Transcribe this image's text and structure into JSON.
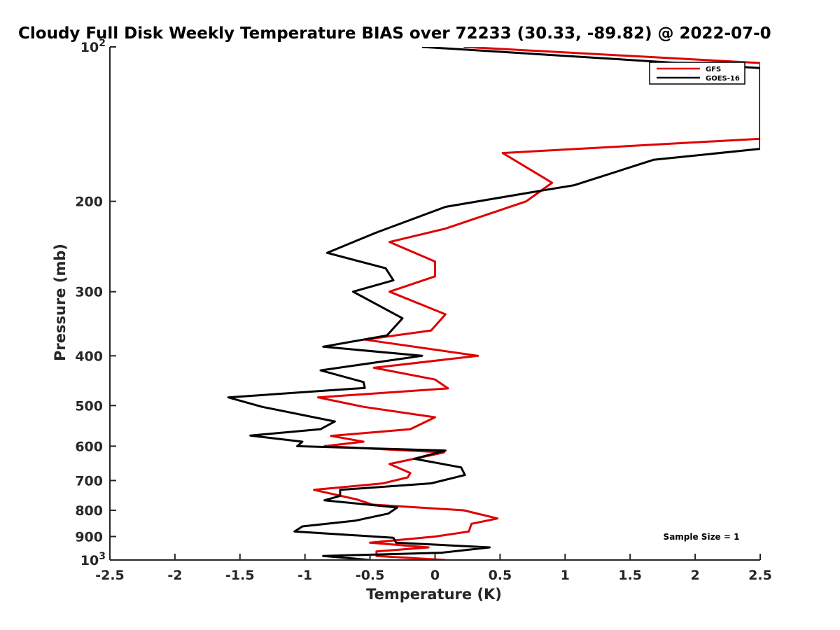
{
  "chart_data": {
    "type": "line",
    "title": "Cloudy Full Disk Weekly Temperature BIAS over 72233 (30.33, -89.82) @ 2022-07-0",
    "xlabel": "Temperature (K)",
    "ylabel": "Pressure (mb)",
    "xlim": [
      -2.5,
      2.5
    ],
    "ylim": [
      1000,
      100
    ],
    "yscale": "log",
    "y_reversed": true,
    "grid": false,
    "legend_position": "top-right",
    "annotation": "Sample Size = 1",
    "x_ticks": [
      "-2.5",
      "-2",
      "-1.5",
      "-1",
      "-0.5",
      "0",
      "0.5",
      "1",
      "1.5",
      "2",
      "2.5"
    ],
    "y_ticks": [
      {
        "value": 100,
        "label": "10",
        "sup": "2"
      },
      {
        "value": 200,
        "label": "200"
      },
      {
        "value": 300,
        "label": "300"
      },
      {
        "value": 400,
        "label": "400"
      },
      {
        "value": 500,
        "label": "500"
      },
      {
        "value": 600,
        "label": "600"
      },
      {
        "value": 700,
        "label": "700"
      },
      {
        "value": 800,
        "label": "800"
      },
      {
        "value": 900,
        "label": "900"
      },
      {
        "value": 1000,
        "label": "10",
        "sup": "3"
      }
    ],
    "series": [
      {
        "name": "GFS",
        "color": "#e00000",
        "points": [
          [
            0.22,
            100
          ],
          [
            2.5,
            107.5
          ],
          [
            2.5,
            151
          ],
          [
            0.52,
            161
          ],
          [
            0.9,
            184
          ],
          [
            0.7,
            200
          ],
          [
            0.08,
            226
          ],
          [
            -0.35,
            240
          ],
          [
            0.0,
            262
          ],
          [
            0.0,
            280
          ],
          [
            -0.35,
            300
          ],
          [
            0.08,
            332
          ],
          [
            -0.03,
            357
          ],
          [
            -0.54,
            372
          ],
          [
            0.33,
            400
          ],
          [
            -0.47,
            422
          ],
          [
            0.0,
            445
          ],
          [
            0.1,
            463
          ],
          [
            -0.9,
            482
          ],
          [
            -0.55,
            503
          ],
          [
            0.0,
            527
          ],
          [
            -0.19,
            556
          ],
          [
            -0.8,
            573
          ],
          [
            -0.55,
            588
          ],
          [
            -0.85,
            600
          ],
          [
            0.07,
            617
          ],
          [
            -0.35,
            650
          ],
          [
            -0.19,
            677
          ],
          [
            -0.21,
            690
          ],
          [
            -0.4,
            709
          ],
          [
            -0.93,
            730
          ],
          [
            -0.6,
            762
          ],
          [
            -0.48,
            780
          ],
          [
            0.22,
            800
          ],
          [
            0.48,
            830
          ],
          [
            0.28,
            850
          ],
          [
            0.26,
            880
          ],
          [
            0.0,
            900
          ],
          [
            -0.5,
            925
          ],
          [
            -0.05,
            945
          ],
          [
            -0.45,
            962
          ],
          [
            -0.45,
            982
          ],
          [
            0.08,
            1000
          ]
        ]
      },
      {
        "name": "GOES-16",
        "color": "#000000",
        "points": [
          [
            -0.1,
            100
          ],
          [
            2.5,
            110
          ],
          [
            2.5,
            158
          ],
          [
            1.68,
            166
          ],
          [
            1.07,
            186
          ],
          [
            0.85,
            190
          ],
          [
            0.08,
            205
          ],
          [
            -0.45,
            230
          ],
          [
            -0.83,
            252
          ],
          [
            -0.38,
            270
          ],
          [
            -0.32,
            285
          ],
          [
            -0.63,
            300
          ],
          [
            -0.25,
            338
          ],
          [
            -0.37,
            365
          ],
          [
            -0.86,
            384
          ],
          [
            -0.1,
            400
          ],
          [
            -0.88,
            427
          ],
          [
            -0.55,
            450
          ],
          [
            -0.54,
            462
          ],
          [
            -1.59,
            482
          ],
          [
            -1.33,
            503
          ],
          [
            -0.77,
            537
          ],
          [
            -0.88,
            556
          ],
          [
            -1.42,
            572
          ],
          [
            -1.02,
            588
          ],
          [
            -1.06,
            600
          ],
          [
            0.08,
            612
          ],
          [
            -0.16,
            635
          ],
          [
            0.2,
            660
          ],
          [
            0.23,
            683
          ],
          [
            -0.03,
            709
          ],
          [
            -0.73,
            730
          ],
          [
            -0.73,
            750
          ],
          [
            -0.85,
            765
          ],
          [
            -0.29,
            790
          ],
          [
            -0.36,
            812
          ],
          [
            -0.61,
            838
          ],
          [
            -1.02,
            860
          ],
          [
            -1.08,
            880
          ],
          [
            -0.32,
            905
          ],
          [
            -0.3,
            925
          ],
          [
            0.42,
            945
          ],
          [
            0.05,
            968
          ],
          [
            -0.86,
            982
          ],
          [
            -0.5,
            1000
          ]
        ]
      }
    ]
  }
}
